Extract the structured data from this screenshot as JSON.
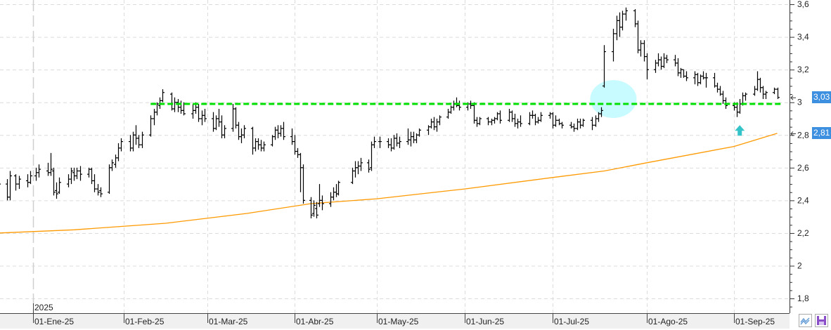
{
  "chart_data": {
    "type": "ohlc",
    "title": "",
    "xlabel": "",
    "ylabel": "",
    "ylim": [
      1.71,
      3.626
    ],
    "grid": true,
    "year_label": "2025",
    "x_tick_labels": [
      "01-Ene-25",
      "01-Feb-25",
      "01-Mar-25",
      "01-Abr-25",
      "01-May-25",
      "01-Jun-25",
      "01-Jul-25",
      "01-Ago-25",
      "01-Sep-25"
    ],
    "x_tick_dates": [
      "2025-01-01",
      "2025-02-01",
      "2025-03-01",
      "2025-04-01",
      "2025-05-01",
      "2025-06-01",
      "2025-07-01",
      "2025-08-01",
      "2025-09-01"
    ],
    "y_ticks": [
      3.6,
      3.4,
      3.2,
      3.0,
      2.8,
      2.6,
      2.4,
      2.2,
      2.0,
      1.8
    ],
    "y_tick_labels": [
      "3,6",
      "3,4",
      "3,2",
      "3",
      "2,8",
      "2,6",
      "2,4",
      "2,2",
      "2",
      "1,8"
    ],
    "price_markers": [
      {
        "value": 3.03,
        "label": "3,03"
      },
      {
        "value": 2.81,
        "label": "2,81"
      }
    ],
    "colors": {
      "bars": "#000000",
      "moving_average": "#ff9900",
      "support_line": "#00e000",
      "highlight": "#c8fbff",
      "arrow": "#33c3c8",
      "marker": "#3d8fe0"
    },
    "support_line": {
      "value": 2.99,
      "from": "2025-02-10",
      "to": "2025-09-16",
      "style": "dashed"
    },
    "highlight_ellipse": {
      "date": "2025-07-21",
      "value": 3.02
    },
    "arrow_annotation": {
      "date": "2025-09-03",
      "value": 2.86,
      "direction": "up"
    },
    "moving_average": [
      [
        "2024-12-20",
        2.2
      ],
      [
        "2025-01-15",
        2.22
      ],
      [
        "2025-02-15",
        2.26
      ],
      [
        "2025-03-15",
        2.32
      ],
      [
        "2025-04-07",
        2.38
      ],
      [
        "2025-05-01",
        2.41
      ],
      [
        "2025-06-01",
        2.47
      ],
      [
        "2025-07-01",
        2.54
      ],
      [
        "2025-07-18",
        2.58
      ],
      [
        "2025-08-01",
        2.63
      ],
      [
        "2025-09-01",
        2.73
      ],
      [
        "2025-09-16",
        2.81
      ]
    ],
    "bars": [
      [
        "2024-12-20",
        2.55,
        2.62,
        2.45,
        2.5
      ],
      [
        "2024-12-23",
        2.5,
        2.53,
        2.4,
        2.42
      ],
      [
        "2024-12-24",
        2.42,
        2.58,
        2.4,
        2.55
      ],
      [
        "2024-12-26",
        2.55,
        2.56,
        2.46,
        2.5
      ],
      [
        "2024-12-27",
        2.5,
        2.55,
        2.47,
        2.53
      ],
      [
        "2024-12-30",
        2.52,
        2.56,
        2.48,
        2.51
      ],
      [
        "2024-12-31",
        2.51,
        2.58,
        2.5,
        2.55
      ],
      [
        "2025-01-02",
        2.55,
        2.6,
        2.52,
        2.57
      ],
      [
        "2025-01-03",
        2.57,
        2.62,
        2.54,
        2.59
      ],
      [
        "2025-01-06",
        2.58,
        2.63,
        2.55,
        2.57
      ],
      [
        "2025-01-07",
        2.57,
        2.69,
        2.55,
        2.59
      ],
      [
        "2025-01-08",
        2.58,
        2.6,
        2.43,
        2.45
      ],
      [
        "2025-01-09",
        2.46,
        2.51,
        2.41,
        2.44
      ],
      [
        "2025-01-10",
        2.45,
        2.54,
        2.44,
        2.51
      ],
      [
        "2025-01-13",
        2.5,
        2.56,
        2.48,
        2.53
      ],
      [
        "2025-01-14",
        2.53,
        2.6,
        2.5,
        2.58
      ],
      [
        "2025-01-15",
        2.57,
        2.6,
        2.52,
        2.55
      ],
      [
        "2025-01-16",
        2.55,
        2.6,
        2.53,
        2.58
      ],
      [
        "2025-01-17",
        2.58,
        2.61,
        2.52,
        2.56
      ],
      [
        "2025-01-20",
        2.56,
        2.6,
        2.54,
        2.59
      ],
      [
        "2025-01-21",
        2.59,
        2.6,
        2.5,
        2.52
      ],
      [
        "2025-01-22",
        2.52,
        2.56,
        2.45,
        2.47
      ],
      [
        "2025-01-23",
        2.47,
        2.5,
        2.43,
        2.45
      ],
      [
        "2025-01-24",
        2.46,
        2.48,
        2.42,
        2.44
      ],
      [
        "2025-01-27",
        2.45,
        2.62,
        2.44,
        2.6
      ],
      [
        "2025-01-28",
        2.6,
        2.65,
        2.58,
        2.63
      ],
      [
        "2025-01-29",
        2.62,
        2.68,
        2.6,
        2.66
      ],
      [
        "2025-01-30",
        2.66,
        2.75,
        2.64,
        2.72
      ],
      [
        "2025-01-31",
        2.72,
        2.78,
        2.7,
        2.76
      ],
      [
        "2025-02-03",
        2.76,
        2.8,
        2.7,
        2.72
      ],
      [
        "2025-02-04",
        2.72,
        2.82,
        2.7,
        2.8
      ],
      [
        "2025-02-05",
        2.8,
        2.86,
        2.74,
        2.78
      ],
      [
        "2025-02-06",
        2.78,
        2.8,
        2.72,
        2.74
      ],
      [
        "2025-02-07",
        2.74,
        2.82,
        2.72,
        2.8
      ],
      [
        "2025-02-10",
        2.8,
        2.92,
        2.79,
        2.9
      ],
      [
        "2025-02-11",
        2.9,
        2.96,
        2.86,
        2.94
      ],
      [
        "2025-02-12",
        2.94,
        3.0,
        2.92,
        2.99
      ],
      [
        "2025-02-13",
        2.98,
        3.03,
        2.96,
        3.01
      ],
      [
        "2025-02-14",
        3.01,
        3.08,
        3.0,
        3.06
      ],
      [
        "2025-02-17",
        3.05,
        3.06,
        2.95,
        2.96
      ],
      [
        "2025-02-18",
        2.96,
        3.03,
        2.94,
        3.0
      ],
      [
        "2025-02-19",
        3.0,
        3.02,
        2.94,
        2.97
      ],
      [
        "2025-02-20",
        2.97,
        3.01,
        2.93,
        2.95
      ],
      [
        "2025-02-21",
        2.95,
        3.0,
        2.92,
        2.93
      ],
      [
        "2025-02-24",
        2.93,
        2.99,
        2.9,
        2.95
      ],
      [
        "2025-02-25",
        2.95,
        3.0,
        2.93,
        2.97
      ],
      [
        "2025-02-26",
        2.97,
        2.99,
        2.88,
        2.9
      ],
      [
        "2025-02-27",
        2.9,
        2.95,
        2.86,
        2.92
      ],
      [
        "2025-02-28",
        2.92,
        2.96,
        2.88,
        2.9
      ],
      [
        "2025-03-03",
        2.9,
        2.94,
        2.82,
        2.84
      ],
      [
        "2025-03-04",
        2.84,
        2.92,
        2.83,
        2.9
      ],
      [
        "2025-03-05",
        2.9,
        2.96,
        2.85,
        2.88
      ],
      [
        "2025-03-06",
        2.88,
        2.92,
        2.78,
        2.8
      ],
      [
        "2025-03-07",
        2.8,
        2.86,
        2.78,
        2.84
      ],
      [
        "2025-03-10",
        2.84,
        2.99,
        2.82,
        2.96
      ],
      [
        "2025-03-11",
        2.96,
        2.97,
        2.84,
        2.86
      ],
      [
        "2025-03-12",
        2.86,
        2.88,
        2.77,
        2.79
      ],
      [
        "2025-03-13",
        2.79,
        2.84,
        2.75,
        2.8
      ],
      [
        "2025-03-14",
        2.8,
        2.86,
        2.78,
        2.84
      ],
      [
        "2025-03-17",
        2.84,
        2.85,
        2.68,
        2.72
      ],
      [
        "2025-03-18",
        2.72,
        2.78,
        2.7,
        2.76
      ],
      [
        "2025-03-19",
        2.76,
        2.78,
        2.71,
        2.74
      ],
      [
        "2025-03-20",
        2.74,
        2.77,
        2.7,
        2.72
      ],
      [
        "2025-03-21",
        2.72,
        2.76,
        2.7,
        2.74
      ],
      [
        "2025-03-24",
        2.74,
        2.8,
        2.73,
        2.79
      ],
      [
        "2025-03-25",
        2.79,
        2.85,
        2.77,
        2.83
      ],
      [
        "2025-03-26",
        2.83,
        2.86,
        2.78,
        2.81
      ],
      [
        "2025-03-27",
        2.81,
        2.86,
        2.79,
        2.84
      ],
      [
        "2025-03-28",
        2.84,
        2.88,
        2.77,
        2.79
      ],
      [
        "2025-03-31",
        2.79,
        2.84,
        2.74,
        2.76
      ],
      [
        "2025-04-01",
        2.76,
        2.8,
        2.68,
        2.7
      ],
      [
        "2025-04-02",
        2.7,
        2.72,
        2.66,
        2.68
      ],
      [
        "2025-04-03",
        2.68,
        2.69,
        2.45,
        2.6
      ],
      [
        "2025-04-04",
        2.6,
        2.62,
        2.38,
        2.4
      ],
      [
        "2025-04-07",
        2.4,
        2.42,
        2.29,
        2.31
      ],
      [
        "2025-04-08",
        2.32,
        2.4,
        2.3,
        2.37
      ],
      [
        "2025-04-09",
        2.35,
        2.39,
        2.29,
        2.31
      ],
      [
        "2025-04-10",
        2.38,
        2.5,
        2.36,
        2.4
      ],
      [
        "2025-04-11",
        2.4,
        2.43,
        2.34,
        2.38
      ],
      [
        "2025-04-14",
        2.38,
        2.45,
        2.36,
        2.42
      ],
      [
        "2025-04-15",
        2.42,
        2.48,
        2.4,
        2.45
      ],
      [
        "2025-04-16",
        2.45,
        2.5,
        2.42,
        2.44
      ],
      [
        "2025-04-17",
        2.44,
        2.52,
        2.43,
        2.51
      ],
      [
        "2025-04-22",
        2.51,
        2.6,
        2.5,
        2.58
      ],
      [
        "2025-04-23",
        2.58,
        2.64,
        2.54,
        2.6
      ],
      [
        "2025-04-24",
        2.6,
        2.64,
        2.56,
        2.61
      ],
      [
        "2025-04-25",
        2.61,
        2.66,
        2.58,
        2.63
      ],
      [
        "2025-04-28",
        2.63,
        2.65,
        2.57,
        2.59
      ],
      [
        "2025-04-29",
        2.6,
        2.76,
        2.58,
        2.74
      ],
      [
        "2025-04-30",
        2.74,
        2.79,
        2.72,
        2.76
      ],
      [
        "2025-05-02",
        2.76,
        2.79,
        2.72,
        2.76
      ],
      [
        "2025-05-05",
        2.76,
        2.78,
        2.72,
        2.74
      ],
      [
        "2025-05-06",
        2.74,
        2.78,
        2.7,
        2.72
      ],
      [
        "2025-05-07",
        2.72,
        2.8,
        2.71,
        2.78
      ],
      [
        "2025-05-08",
        2.78,
        2.81,
        2.73,
        2.75
      ],
      [
        "2025-05-09",
        2.75,
        2.79,
        2.72,
        2.76
      ],
      [
        "2025-05-12",
        2.76,
        2.84,
        2.74,
        2.77
      ],
      [
        "2025-05-13",
        2.77,
        2.82,
        2.73,
        2.79
      ],
      [
        "2025-05-14",
        2.79,
        2.82,
        2.75,
        2.77
      ],
      [
        "2025-05-15",
        2.77,
        2.81,
        2.75,
        2.8
      ],
      [
        "2025-05-16",
        2.8,
        2.84,
        2.79,
        2.83
      ],
      [
        "2025-05-19",
        2.83,
        2.86,
        2.8,
        2.85
      ],
      [
        "2025-05-20",
        2.85,
        2.9,
        2.84,
        2.88
      ],
      [
        "2025-05-21",
        2.88,
        2.91,
        2.83,
        2.85
      ],
      [
        "2025-05-22",
        2.85,
        2.9,
        2.82,
        2.88
      ],
      [
        "2025-05-23",
        2.88,
        2.92,
        2.86,
        2.91
      ],
      [
        "2025-05-26",
        2.91,
        2.96,
        2.9,
        2.94
      ],
      [
        "2025-05-27",
        2.94,
        2.98,
        2.93,
        2.97
      ],
      [
        "2025-05-28",
        2.97,
        3.01,
        2.95,
        2.99
      ],
      [
        "2025-05-29",
        2.99,
        3.03,
        2.97,
        2.98
      ],
      [
        "2025-05-30",
        2.98,
        3.01,
        2.95,
        2.97
      ],
      [
        "2025-06-02",
        2.97,
        3.0,
        2.95,
        2.99
      ],
      [
        "2025-06-03",
        2.99,
        3.01,
        2.96,
        2.98
      ],
      [
        "2025-06-04",
        2.98,
        3.0,
        2.87,
        2.89
      ],
      [
        "2025-06-05",
        2.89,
        2.91,
        2.85,
        2.87
      ],
      [
        "2025-06-06",
        2.87,
        2.91,
        2.86,
        2.9
      ],
      [
        "2025-06-09",
        2.9,
        2.91,
        2.86,
        2.88
      ],
      [
        "2025-06-10",
        2.88,
        2.9,
        2.86,
        2.89
      ],
      [
        "2025-06-11",
        2.89,
        2.91,
        2.87,
        2.9
      ],
      [
        "2025-06-12",
        2.9,
        2.94,
        2.89,
        2.93
      ],
      [
        "2025-06-13",
        2.93,
        2.95,
        2.87,
        2.89
      ],
      [
        "2025-06-16",
        2.89,
        2.96,
        2.88,
        2.94
      ],
      [
        "2025-06-17",
        2.94,
        2.95,
        2.88,
        2.9
      ],
      [
        "2025-06-18",
        2.9,
        2.93,
        2.85,
        2.87
      ],
      [
        "2025-06-19",
        2.87,
        2.9,
        2.84,
        2.88
      ],
      [
        "2025-06-20",
        2.88,
        2.92,
        2.85,
        2.87
      ],
      [
        "2025-06-23",
        2.87,
        2.94,
        2.86,
        2.92
      ],
      [
        "2025-06-24",
        2.92,
        2.95,
        2.9,
        2.92
      ],
      [
        "2025-06-25",
        2.92,
        2.93,
        2.86,
        2.88
      ],
      [
        "2025-06-26",
        2.88,
        2.91,
        2.87,
        2.89
      ],
      [
        "2025-06-27",
        2.89,
        2.94,
        2.88,
        2.92
      ],
      [
        "2025-06-30",
        2.92,
        2.94,
        2.9,
        2.93
      ],
      [
        "2025-07-01",
        2.93,
        2.94,
        2.84,
        2.86
      ],
      [
        "2025-07-02",
        2.86,
        2.92,
        2.85,
        2.89
      ],
      [
        "2025-07-03",
        2.89,
        2.9,
        2.86,
        2.87
      ],
      [
        "2025-07-04",
        2.87,
        2.88,
        2.84,
        2.86
      ],
      [
        "2025-07-07",
        2.86,
        2.88,
        2.84,
        2.85
      ],
      [
        "2025-07-08",
        2.85,
        2.87,
        2.82,
        2.84
      ],
      [
        "2025-07-09",
        2.84,
        2.9,
        2.83,
        2.88
      ],
      [
        "2025-07-10",
        2.88,
        2.9,
        2.84,
        2.86
      ],
      [
        "2025-07-11",
        2.86,
        2.9,
        2.85,
        2.89
      ],
      [
        "2025-07-14",
        2.89,
        2.91,
        2.83,
        2.86
      ],
      [
        "2025-07-15",
        2.86,
        2.92,
        2.85,
        2.9
      ],
      [
        "2025-07-16",
        2.9,
        2.94,
        2.88,
        2.93
      ],
      [
        "2025-07-17",
        2.93,
        2.97,
        2.91,
        2.95
      ],
      [
        "2025-07-18",
        3.1,
        3.35,
        3.09,
        3.31
      ],
      [
        "2025-07-21",
        3.31,
        3.45,
        3.25,
        3.42
      ],
      [
        "2025-07-22",
        3.42,
        3.53,
        3.38,
        3.5
      ],
      [
        "2025-07-23",
        3.5,
        3.55,
        3.4,
        3.46
      ],
      [
        "2025-07-24",
        3.46,
        3.56,
        3.44,
        3.54
      ],
      [
        "2025-07-25",
        3.54,
        3.58,
        3.5,
        3.56
      ],
      [
        "2025-07-28",
        3.56,
        3.57,
        3.46,
        3.48
      ],
      [
        "2025-07-29",
        3.48,
        3.5,
        3.3,
        3.32
      ],
      [
        "2025-07-30",
        3.32,
        3.38,
        3.28,
        3.36
      ],
      [
        "2025-07-31",
        3.36,
        3.38,
        3.25,
        3.28
      ],
      [
        "2025-08-01",
        3.28,
        3.3,
        3.14,
        3.2
      ],
      [
        "2025-08-04",
        3.2,
        3.26,
        3.18,
        3.24
      ],
      [
        "2025-08-05",
        3.24,
        3.3,
        3.22,
        3.26
      ],
      [
        "2025-08-06",
        3.26,
        3.28,
        3.2,
        3.22
      ],
      [
        "2025-08-07",
        3.22,
        3.3,
        3.21,
        3.27
      ],
      [
        "2025-08-08",
        3.27,
        3.29,
        3.24,
        3.26
      ],
      [
        "2025-08-11",
        3.26,
        3.29,
        3.22,
        3.24
      ],
      [
        "2025-08-12",
        3.24,
        3.27,
        3.16,
        3.18
      ],
      [
        "2025-08-13",
        3.18,
        3.21,
        3.15,
        3.2
      ],
      [
        "2025-08-14",
        3.2,
        3.2,
        3.15,
        3.16
      ],
      [
        "2025-08-15",
        3.16,
        3.19,
        3.13,
        3.15
      ],
      [
        "2025-08-18",
        3.15,
        3.19,
        3.11,
        3.17
      ],
      [
        "2025-08-19",
        3.17,
        3.18,
        3.1,
        3.12
      ],
      [
        "2025-08-20",
        3.12,
        3.17,
        3.11,
        3.16
      ],
      [
        "2025-08-21",
        3.16,
        3.19,
        3.14,
        3.15
      ],
      [
        "2025-08-22",
        3.15,
        3.18,
        3.09,
        3.15
      ],
      [
        "2025-08-25",
        3.15,
        3.18,
        3.09,
        3.1
      ],
      [
        "2025-08-26",
        3.1,
        3.12,
        3.06,
        3.08
      ],
      [
        "2025-08-27",
        3.08,
        3.1,
        3.04,
        3.05
      ],
      [
        "2025-08-28",
        3.05,
        3.07,
        2.99,
        3.01
      ],
      [
        "2025-08-29",
        3.01,
        3.03,
        2.96,
        2.98
      ],
      [
        "2025-09-01",
        2.98,
        3.0,
        2.95,
        2.97
      ],
      [
        "2025-09-02",
        2.97,
        3.0,
        2.91,
        2.94
      ],
      [
        "2025-09-03",
        2.94,
        3.02,
        2.93,
        2.99
      ],
      [
        "2025-09-04",
        2.99,
        3.06,
        2.98,
        3.04
      ],
      [
        "2025-09-05",
        3.04,
        3.06,
        3.01,
        3.05
      ],
      [
        "2025-09-08",
        3.05,
        3.1,
        3.04,
        3.08
      ],
      [
        "2025-09-09",
        3.08,
        3.19,
        3.07,
        3.14
      ],
      [
        "2025-09-10",
        3.14,
        3.15,
        3.06,
        3.09
      ],
      [
        "2025-09-11",
        3.09,
        3.1,
        3.02,
        3.05
      ],
      [
        "2025-09-12",
        3.05,
        3.07,
        3.02,
        3.06
      ],
      [
        "2025-09-15",
        3.06,
        3.09,
        3.05,
        3.08
      ],
      [
        "2025-09-16",
        3.08,
        3.09,
        3.02,
        3.03
      ]
    ]
  },
  "toolbar": {
    "icons": [
      "chart-type-icon",
      "save-icon"
    ]
  }
}
